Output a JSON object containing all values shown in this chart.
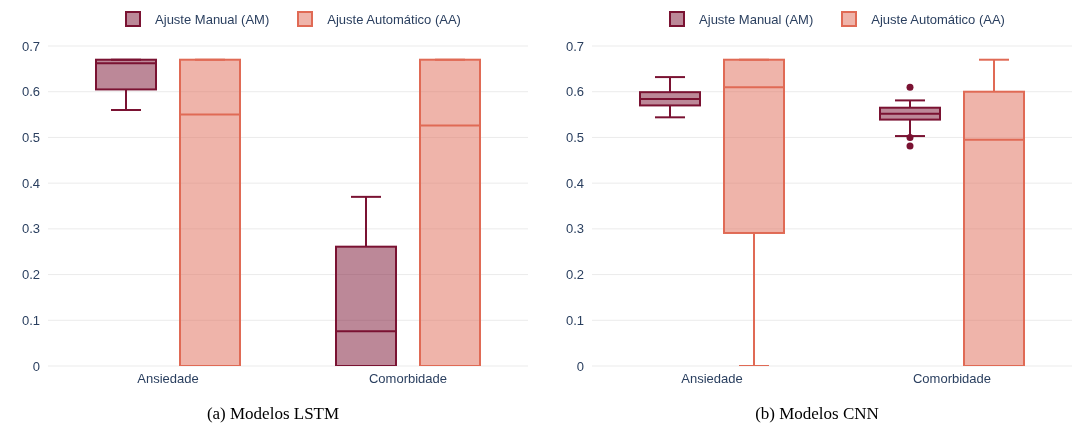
{
  "chart_data": [
    {
      "type": "box",
      "title": "(a) Modelos LSTM",
      "categories": [
        "Ansiedade",
        "Comorbidade"
      ],
      "ylim": [
        0,
        0.7
      ],
      "yticks": [
        0,
        0.1,
        0.2,
        0.3,
        0.4,
        0.5,
        0.6,
        0.7
      ],
      "grid": "y",
      "legend": "top",
      "series": [
        {
          "name": "Ajuste Manual (AM)",
          "color": "#7a1232",
          "boxes": [
            {
              "low": 0.56,
              "q1": 0.605,
              "median": 0.662,
              "q3": 0.67,
              "high": 0.67
            },
            {
              "low": 0,
              "q1": 0,
              "median": 0.076,
              "q3": 0.261,
              "high": 0.37
            }
          ]
        },
        {
          "name": "Ajuste Automático (AA)",
          "color": "#e06a55",
          "boxes": [
            {
              "low": 0,
              "q1": 0,
              "median": 0.55,
              "q3": 0.67,
              "high": 0.67
            },
            {
              "low": 0,
              "q1": 0,
              "median": 0.526,
              "q3": 0.67,
              "high": 0.67
            }
          ]
        }
      ]
    },
    {
      "type": "box",
      "title": "(b) Modelos CNN",
      "categories": [
        "Ansiedade",
        "Comorbidade"
      ],
      "ylim": [
        0,
        0.7
      ],
      "yticks": [
        0,
        0.1,
        0.2,
        0.3,
        0.4,
        0.5,
        0.6,
        0.7
      ],
      "grid": "y",
      "legend": "top",
      "series": [
        {
          "name": "Ajuste Manual (AM)",
          "color": "#7a1232",
          "boxes": [
            {
              "low": 0.544,
              "q1": 0.57,
              "median": 0.584,
              "q3": 0.599,
              "high": 0.632
            },
            {
              "low": 0.503,
              "q1": 0.539,
              "median": 0.552,
              "q3": 0.565,
              "high": 0.581,
              "outliers": [
                0.61,
                0.5,
                0.481
              ]
            }
          ]
        },
        {
          "name": "Ajuste Automático (AA)",
          "color": "#e06a55",
          "boxes": [
            {
              "low": 0,
              "q1": 0.291,
              "median": 0.61,
              "q3": 0.67,
              "high": 0.67
            },
            {
              "low": 0,
              "q1": 0,
              "median": 0.495,
              "q3": 0.6,
              "high": 0.67
            }
          ]
        }
      ]
    }
  ]
}
